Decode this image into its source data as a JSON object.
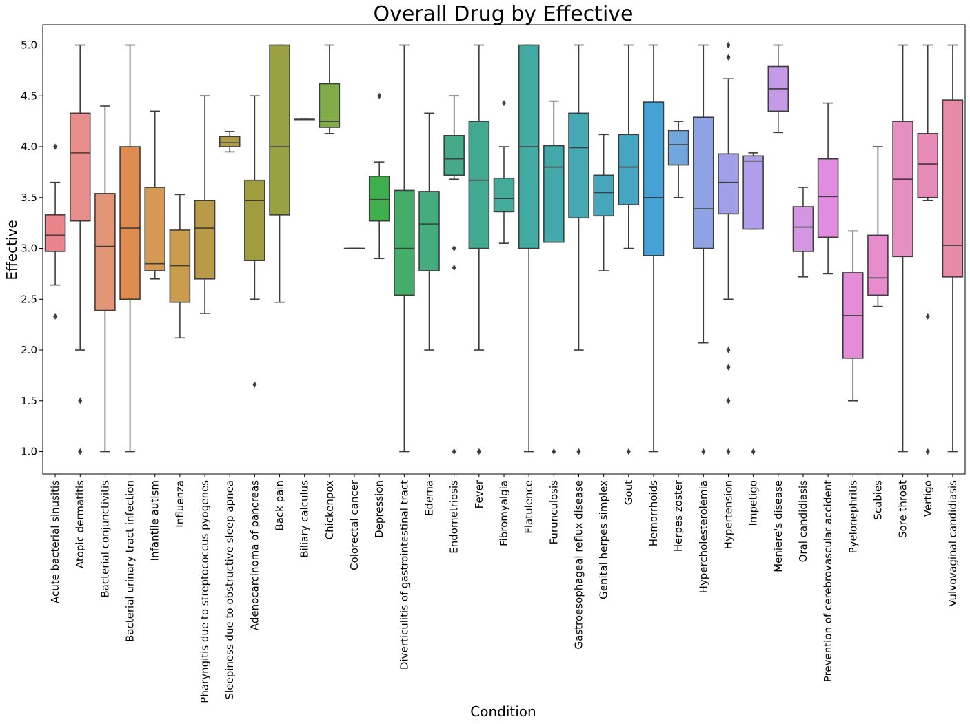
{
  "chart_data": {
    "type": "box",
    "title": "Overall Drug by Effective",
    "xlabel": "Condition",
    "ylabel": "Effective",
    "ylim": [
      0.78,
      5.2
    ],
    "yticks": [
      "1.0",
      "1.5",
      "2.0",
      "2.5",
      "3.0",
      "3.5",
      "4.0",
      "4.5",
      "5.0"
    ],
    "grid": false,
    "legend": "none",
    "categories": [
      "Acute bacterial sinusitis",
      "Atopic dermatitis",
      "Bacterial conjunctivitis",
      "Bacterial urinary tract infection",
      "Infantile autism",
      "Influenza",
      "Pharyngitis due to streptococcus pyogenes",
      "Sleepiness due to obstructive sleep apnea",
      "Adenocarcinoma of pancreas",
      "Back pain",
      "Biliary calculus",
      "Chickenpox",
      "Colorectal cancer",
      "Depression",
      "Diverticulitis of gastrointestinal tract",
      "Edema",
      "Endometriosis",
      "Fever",
      "Fibromyalgia",
      "Flatulence",
      "Furunculosis",
      "Gastroesophageal reflux disease",
      "Genital herpes simplex",
      "Gout",
      "Hemorrhoids",
      "Herpes zoster",
      "Hypercholesterolemia",
      "Hypertension",
      "Impetigo",
      "Meniere's disease",
      "Oral candidiasis",
      "Prevention of cerebrovascular accident",
      "Pyelonephritis",
      "Scabies",
      "Sore throat",
      "Vertigo",
      "Vulvovaginal candidiasis"
    ],
    "boxes": [
      {
        "whislo": 2.64,
        "q1": 2.97,
        "med": 3.13,
        "q3": 3.33,
        "whishi": 3.65,
        "fliers": [
          4.0,
          2.33
        ],
        "color": "#e8848a"
      },
      {
        "whislo": 2.0,
        "q1": 3.27,
        "med": 3.94,
        "q3": 4.33,
        "whishi": 5.0,
        "fliers": [
          1.5,
          1.0,
          1.0
        ],
        "color": "#e78e8c"
      },
      {
        "whislo": 1.0,
        "q1": 2.39,
        "med": 3.02,
        "q3": 3.54,
        "whishi": 4.4,
        "fliers": [],
        "color": "#e39677"
      },
      {
        "whislo": 1.0,
        "q1": 2.5,
        "med": 3.2,
        "q3": 4.0,
        "whishi": 5.0,
        "fliers": [],
        "color": "#df8c52"
      },
      {
        "whislo": 2.7,
        "q1": 2.78,
        "med": 2.85,
        "q3": 3.6,
        "whishi": 4.35,
        "fliers": [],
        "color": "#d49a55"
      },
      {
        "whislo": 2.12,
        "q1": 2.47,
        "med": 2.83,
        "q3": 3.18,
        "whishi": 3.53,
        "fliers": [],
        "color": "#c99d4d"
      },
      {
        "whislo": 2.36,
        "q1": 2.7,
        "med": 3.2,
        "q3": 3.47,
        "whishi": 4.5,
        "fliers": [],
        "color": "#b89a49"
      },
      {
        "whislo": 3.95,
        "q1": 4.0,
        "med": 4.04,
        "q3": 4.1,
        "whishi": 4.15,
        "fliers": [],
        "color": "#b09b45"
      },
      {
        "whislo": 2.5,
        "q1": 2.88,
        "med": 3.47,
        "q3": 3.67,
        "whishi": 4.5,
        "fliers": [
          1.66
        ],
        "color": "#a09d3e"
      },
      {
        "whislo": 2.47,
        "q1": 3.33,
        "med": 4.0,
        "q3": 5.0,
        "whishi": 5.0,
        "fliers": [],
        "color": "#99a143"
      },
      {
        "whislo": 4.27,
        "q1": 4.27,
        "med": 4.27,
        "q3": 4.27,
        "whishi": 4.27,
        "fliers": [],
        "color": "#8aa23f"
      },
      {
        "whislo": 4.13,
        "q1": 4.19,
        "med": 4.25,
        "q3": 4.62,
        "whishi": 5.0,
        "fliers": [],
        "color": "#80ad4a"
      },
      {
        "whislo": 3.0,
        "q1": 3.0,
        "med": 3.0,
        "q3": 3.0,
        "whishi": 3.0,
        "fliers": [],
        "color": "#6aab4a"
      },
      {
        "whislo": 2.9,
        "q1": 3.27,
        "med": 3.48,
        "q3": 3.71,
        "whishi": 3.85,
        "fliers": [
          4.5
        ],
        "color": "#3fae4d"
      },
      {
        "whislo": 1.0,
        "q1": 2.54,
        "med": 3.0,
        "q3": 3.57,
        "whishi": 5.0,
        "fliers": [],
        "color": "#44ad6a"
      },
      {
        "whislo": 2.0,
        "q1": 2.78,
        "med": 3.24,
        "q3": 3.56,
        "whishi": 4.33,
        "fliers": [],
        "color": "#45ac7f"
      },
      {
        "whislo": 3.68,
        "q1": 3.72,
        "med": 3.88,
        "q3": 4.11,
        "whishi": 4.5,
        "fliers": [
          3.0,
          2.81,
          1.0
        ],
        "color": "#44aa8a"
      },
      {
        "whislo": 2.0,
        "q1": 3.0,
        "med": 3.67,
        "q3": 4.25,
        "whishi": 5.0,
        "fliers": [
          1.0,
          1.0
        ],
        "color": "#42a993"
      },
      {
        "whislo": 3.05,
        "q1": 3.36,
        "med": 3.49,
        "q3": 3.69,
        "whishi": 4.0,
        "fliers": [
          4.43
        ],
        "color": "#44aa9a"
      },
      {
        "whislo": 1.0,
        "q1": 3.0,
        "med": 4.0,
        "q3": 5.0,
        "whishi": 5.0,
        "fliers": [],
        "color": "#44aaa4"
      },
      {
        "whislo": 3.06,
        "q1": 3.06,
        "med": 3.8,
        "q3": 4.01,
        "whishi": 4.45,
        "fliers": [
          1.0
        ],
        "color": "#43a8aa"
      },
      {
        "whislo": 2.0,
        "q1": 3.3,
        "med": 3.99,
        "q3": 4.33,
        "whishi": 5.0,
        "fliers": [
          1.0,
          1.0
        ],
        "color": "#45a8b3"
      },
      {
        "whislo": 2.78,
        "q1": 3.32,
        "med": 3.55,
        "q3": 3.72,
        "whishi": 4.12,
        "fliers": [],
        "color": "#46a7ba"
      },
      {
        "whislo": 3.0,
        "q1": 3.43,
        "med": 3.8,
        "q3": 4.12,
        "whishi": 5.0,
        "fliers": [
          1.0
        ],
        "color": "#45a6c2"
      },
      {
        "whislo": 1.0,
        "q1": 2.93,
        "med": 3.5,
        "q3": 4.44,
        "whishi": 5.0,
        "fliers": [],
        "color": "#45a2d6"
      },
      {
        "whislo": 3.5,
        "q1": 3.82,
        "med": 4.02,
        "q3": 4.16,
        "whishi": 4.25,
        "fliers": [],
        "color": "#70a6dc"
      },
      {
        "whislo": 2.07,
        "q1": 3.0,
        "med": 3.39,
        "q3": 4.29,
        "whishi": 5.0,
        "fliers": [
          1.0
        ],
        "color": "#8fa2e4"
      },
      {
        "whislo": 2.5,
        "q1": 3.34,
        "med": 3.65,
        "q3": 3.93,
        "whishi": 4.67,
        "fliers": [
          5.0,
          5.0,
          4.88,
          2.0,
          1.83,
          1.5,
          1.0
        ],
        "color": "#a09fe8"
      },
      {
        "whislo": 3.19,
        "q1": 3.19,
        "med": 3.86,
        "q3": 3.91,
        "whishi": 3.94,
        "fliers": [
          1.0
        ],
        "color": "#b19deb"
      },
      {
        "whislo": 4.14,
        "q1": 4.35,
        "med": 4.57,
        "q3": 4.79,
        "whishi": 5.0,
        "fliers": [],
        "color": "#c59be8"
      },
      {
        "whislo": 2.72,
        "q1": 2.97,
        "med": 3.21,
        "q3": 3.41,
        "whishi": 3.6,
        "fliers": [],
        "color": "#d495e3"
      },
      {
        "whislo": 2.75,
        "q1": 3.11,
        "med": 3.51,
        "q3": 3.88,
        "whishi": 4.43,
        "fliers": [],
        "color": "#e18cdf"
      },
      {
        "whislo": 1.5,
        "q1": 1.92,
        "med": 2.34,
        "q3": 2.76,
        "whishi": 3.17,
        "fliers": [],
        "color": "#e58cd8"
      },
      {
        "whislo": 2.43,
        "q1": 2.54,
        "med": 2.71,
        "q3": 3.13,
        "whishi": 4.0,
        "fliers": [],
        "color": "#e68ccd"
      },
      {
        "whislo": 1.0,
        "q1": 2.92,
        "med": 3.68,
        "q3": 4.25,
        "whishi": 5.0,
        "fliers": [],
        "color": "#e68dc2"
      },
      {
        "whislo": 3.47,
        "q1": 3.5,
        "med": 3.83,
        "q3": 4.13,
        "whishi": 5.0,
        "fliers": [
          2.33,
          1.0
        ],
        "color": "#e68bb7"
      },
      {
        "whislo": 1.0,
        "q1": 2.72,
        "med": 3.03,
        "q3": 4.46,
        "whishi": 5.0,
        "fliers": [],
        "color": "#e68aa6"
      }
    ]
  }
}
